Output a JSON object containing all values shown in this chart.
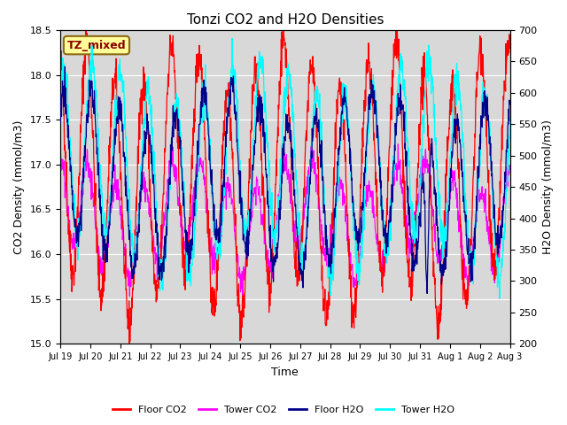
{
  "title": "Tonzi CO2 and H2O Densities",
  "xlabel": "Time",
  "ylabel_left": "CO2 Density (mmol/m3)",
  "ylabel_right": "H2O Density (mmol/m3)",
  "co2_ylim": [
    15.0,
    18.5
  ],
  "h2o_ylim": [
    200,
    700
  ],
  "co2_yticks": [
    15.0,
    15.5,
    16.0,
    16.5,
    17.0,
    17.5,
    18.0,
    18.5
  ],
  "h2o_yticks": [
    200,
    250,
    300,
    350,
    400,
    450,
    500,
    550,
    600,
    650,
    700
  ],
  "xtick_labels": [
    "Jul 19",
    "Jul 20",
    "Jul 21",
    "Jul 22",
    "Jul 23",
    "Jul 24",
    "Jul 25",
    "Jul 26",
    "Jul 27",
    "Jul 28",
    "Jul 29",
    "Jul 30",
    "Jul 31",
    "Aug 1",
    "Aug 2",
    "Aug 3"
  ],
  "annotation_text": "TZ_mixed",
  "annotation_color": "#8B0000",
  "annotation_bg": "#FFFF99",
  "annotation_border": "#8B6914",
  "floor_co2_color": "#FF0000",
  "tower_co2_color": "#FF00FF",
  "floor_h2o_color": "#00008B",
  "tower_h2o_color": "#00FFFF",
  "bg_color": "#D8D8D8",
  "grid_color": "#FFFFFF",
  "n_points": 1440,
  "seed": 42
}
